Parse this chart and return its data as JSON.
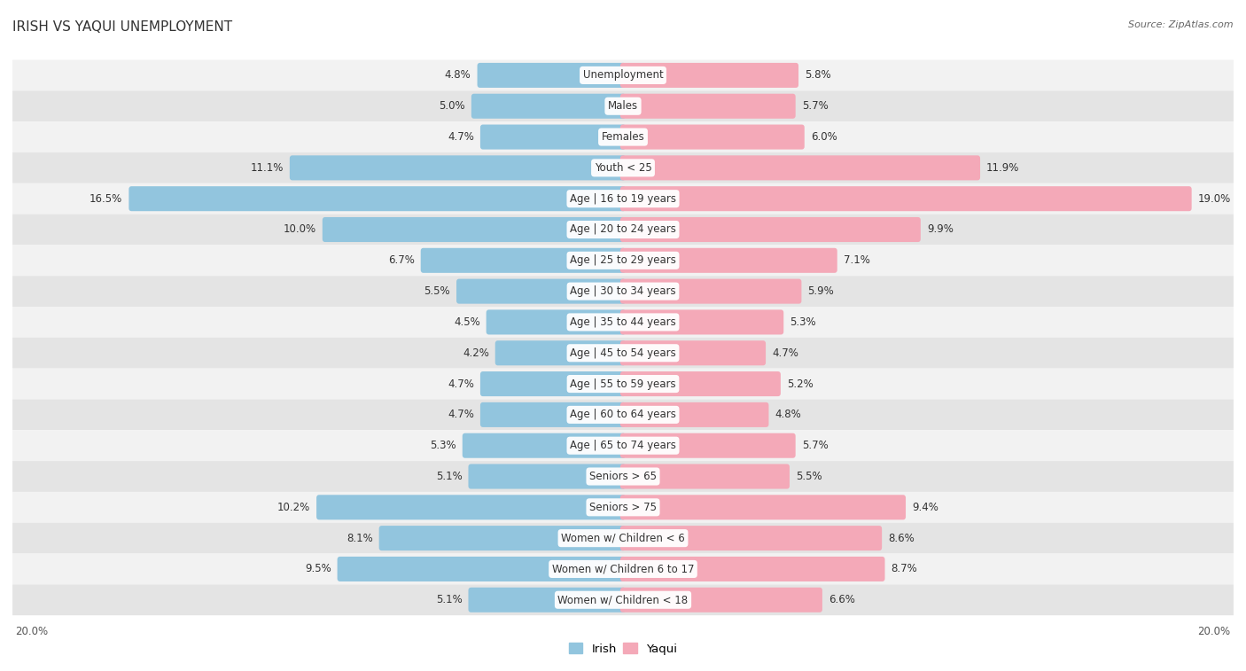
{
  "title": "IRISH VS YAQUI UNEMPLOYMENT",
  "source": "Source: ZipAtlas.com",
  "categories": [
    "Unemployment",
    "Males",
    "Females",
    "Youth < 25",
    "Age | 16 to 19 years",
    "Age | 20 to 24 years",
    "Age | 25 to 29 years",
    "Age | 30 to 34 years",
    "Age | 35 to 44 years",
    "Age | 45 to 54 years",
    "Age | 55 to 59 years",
    "Age | 60 to 64 years",
    "Age | 65 to 74 years",
    "Seniors > 65",
    "Seniors > 75",
    "Women w/ Children < 6",
    "Women w/ Children 6 to 17",
    "Women w/ Children < 18"
  ],
  "irish": [
    4.8,
    5.0,
    4.7,
    11.1,
    16.5,
    10.0,
    6.7,
    5.5,
    4.5,
    4.2,
    4.7,
    4.7,
    5.3,
    5.1,
    10.2,
    8.1,
    9.5,
    5.1
  ],
  "yaqui": [
    5.8,
    5.7,
    6.0,
    11.9,
    19.0,
    9.9,
    7.1,
    5.9,
    5.3,
    4.7,
    5.2,
    4.8,
    5.7,
    5.5,
    9.4,
    8.6,
    8.7,
    6.6
  ],
  "irish_color": "#92c5de",
  "yaqui_color": "#f4a9b8",
  "bg_row_light": "#f2f2f2",
  "bg_row_dark": "#e4e4e4",
  "max_val": 20.0,
  "legend_irish": "Irish",
  "legend_yaqui": "Yaqui",
  "title_fontsize": 11,
  "source_fontsize": 8,
  "label_fontsize": 8.5,
  "value_fontsize": 8.5
}
